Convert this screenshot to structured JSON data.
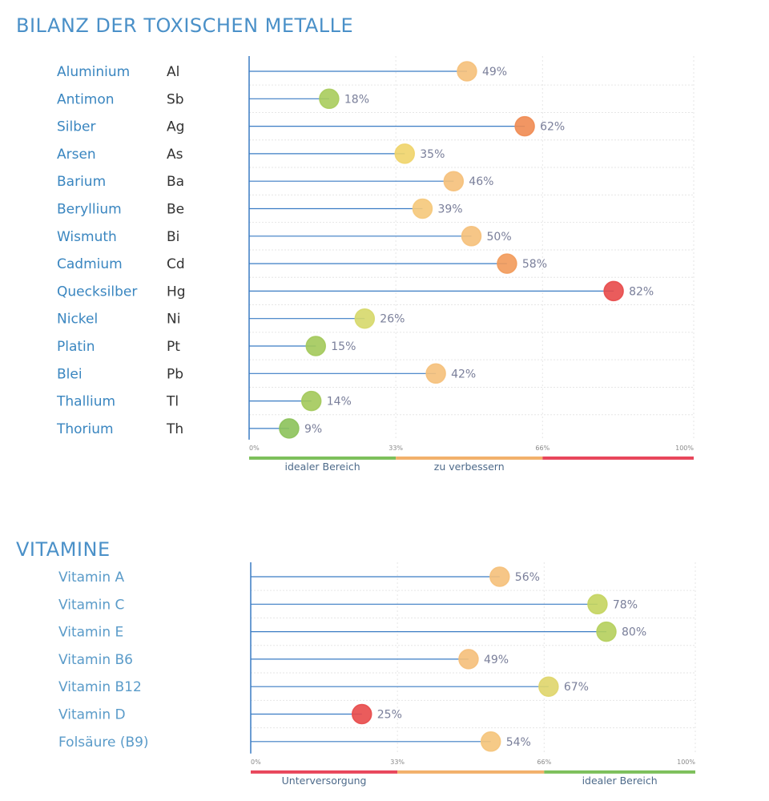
{
  "chart_data": [
    {
      "type": "lollipop",
      "title": "BILANZ DER TOXISCHEN METALLE",
      "xlim": [
        0,
        100
      ],
      "x_ticks": [
        "0%",
        "33%",
        "66%",
        "100%"
      ],
      "zones": [
        {
          "from": 0,
          "to": 33,
          "color": "#7cbf5a",
          "label": "idealer Bereich"
        },
        {
          "from": 33,
          "to": 66,
          "color": "#f2b06a",
          "label": "zu verbessern"
        },
        {
          "from": 66,
          "to": 100,
          "color": "#e8455a",
          "label": ""
        }
      ],
      "rows": [
        {
          "name": "Aluminium",
          "symbol": "Al",
          "value": 49,
          "label": "49%",
          "color": "#f5c07a"
        },
        {
          "name": "Antimon",
          "symbol": "Sb",
          "value": 18,
          "label": "18%",
          "color": "#a9cc5c"
        },
        {
          "name": "Silber",
          "symbol": "Ag",
          "value": 62,
          "label": "62%",
          "color": "#f08b52"
        },
        {
          "name": "Arsen",
          "symbol": "As",
          "value": 35,
          "label": "35%",
          "color": "#efd46a"
        },
        {
          "name": "Barium",
          "symbol": "Ba",
          "value": 46,
          "label": "46%",
          "color": "#f5c07a"
        },
        {
          "name": "Beryllium",
          "symbol": "Be",
          "value": 39,
          "label": "39%",
          "color": "#f5c87a"
        },
        {
          "name": "Wismuth",
          "symbol": "Bi",
          "value": 50,
          "label": "50%",
          "color": "#f5c07a"
        },
        {
          "name": "Cadmium",
          "symbol": "Cd",
          "value": 58,
          "label": "58%",
          "color": "#f29a5a"
        },
        {
          "name": "Quecksilber",
          "symbol": "Hg",
          "value": 82,
          "label": "82%",
          "color": "#e84a4a"
        },
        {
          "name": "Nickel",
          "symbol": "Ni",
          "value": 26,
          "label": "26%",
          "color": "#d6d86a"
        },
        {
          "name": "Platin",
          "symbol": "Pt",
          "value": 15,
          "label": "15%",
          "color": "#a3c95a"
        },
        {
          "name": "Blei",
          "symbol": "Pb",
          "value": 42,
          "label": "42%",
          "color": "#f5c07a"
        },
        {
          "name": "Thallium",
          "symbol": "Tl",
          "value": 14,
          "label": "14%",
          "color": "#a3c95a"
        },
        {
          "name": "Thorium",
          "symbol": "Th",
          "value": 9,
          "label": "9%",
          "color": "#8cc25a"
        }
      ],
      "label_color": "#3a86c0"
    },
    {
      "type": "lollipop",
      "title": "VITAMINE",
      "xlim": [
        0,
        100
      ],
      "x_ticks": [
        "0%",
        "33%",
        "66%",
        "100%"
      ],
      "zones": [
        {
          "from": 0,
          "to": 33,
          "color": "#e8455a",
          "label": "Unterversorgung"
        },
        {
          "from": 33,
          "to": 66,
          "color": "#f2b06a",
          "label": ""
        },
        {
          "from": 66,
          "to": 100,
          "color": "#7cbf5a",
          "label": "idealer Bereich"
        }
      ],
      "rows": [
        {
          "name": "Vitamin A",
          "value": 56,
          "label": "56%",
          "color": "#f5c07a"
        },
        {
          "name": "Vitamin C",
          "value": 78,
          "label": "78%",
          "color": "#c4d45e"
        },
        {
          "name": "Vitamin E",
          "value": 80,
          "label": "80%",
          "color": "#b5cf5c"
        },
        {
          "name": "Vitamin B6",
          "value": 49,
          "label": "49%",
          "color": "#f5bf7a"
        },
        {
          "name": "Vitamin B12",
          "value": 67,
          "label": "67%",
          "color": "#dfd56a"
        },
        {
          "name": "Vitamin D",
          "value": 25,
          "label": "25%",
          "color": "#e84a4a"
        },
        {
          "name": "Folsäure (B9)",
          "value": 54,
          "label": "54%",
          "color": "#f5c47a"
        }
      ],
      "label_color": "#5a9bc9"
    }
  ],
  "axis_color": "#3a7cc4",
  "gridline_color": "#e6e6e6"
}
